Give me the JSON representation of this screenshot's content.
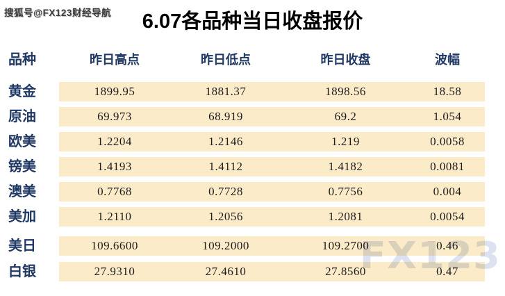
{
  "page": {
    "watermark_top": "搜狐号@FX123财经导航",
    "watermark_bottom": "FX123",
    "title": "6.07各品种当日收盘报价"
  },
  "colors": {
    "header_text": "#1f3864",
    "row_band": "#fcebc9",
    "number_text": "#1c1c1c",
    "watermark_bottom": "#dfe4ef"
  },
  "chart_data": {
    "type": "table",
    "title": "6.07各品种当日收盘报价",
    "columns": [
      "品种",
      "昨日高点",
      "昨日低点",
      "昨日收盘",
      "波幅"
    ],
    "rows": [
      [
        "黄金",
        "1899.95",
        "1881.37",
        "1898.56",
        "18.58"
      ],
      [
        "原油",
        "69.973",
        "68.919",
        "69.2",
        "1.054"
      ],
      [
        "欧美",
        "1.2204",
        "1.2146",
        "1.219",
        "0.0058"
      ],
      [
        "镑美",
        "1.4193",
        "1.4112",
        "1.4182",
        "0.0081"
      ],
      [
        "澳美",
        "0.7768",
        "0.7728",
        "0.7756",
        "0.004"
      ],
      [
        "美加",
        "1.2110",
        "1.2056",
        "1.2081",
        "0.0054"
      ],
      [
        "美日",
        "109.6600",
        "109.2000",
        "109.2700",
        "0.46"
      ],
      [
        "白银",
        "27.9310",
        "27.4610",
        "27.8560",
        "0.47"
      ]
    ]
  }
}
